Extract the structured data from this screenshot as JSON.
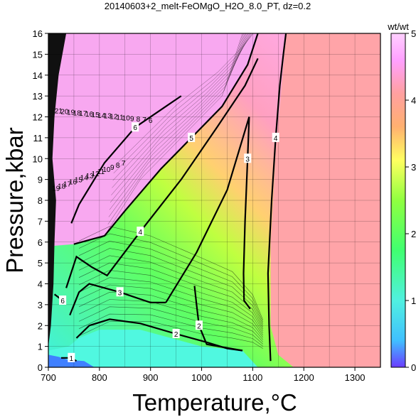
{
  "chart_data": {
    "type": "heatmap",
    "title": "20140603+2_melt-FeOMgO_H2O_8.0_PT, dz=0.2",
    "xlabel": "Temperature,°C",
    "ylabel": "Pressure,kbar",
    "xlim": [
      700,
      1350
    ],
    "ylim": [
      0,
      16
    ],
    "xticks": [
      "700",
      "800",
      "900",
      "1000",
      "1100",
      "1200",
      "1300"
    ],
    "yticks": [
      "0",
      "1",
      "2",
      "3",
      "4",
      "5",
      "6",
      "7",
      "8",
      "9",
      "10",
      "11",
      "12",
      "13",
      "14",
      "15",
      "16"
    ],
    "grid": true,
    "colorbar": {
      "label": "wt/wt",
      "range": [
        0,
        5
      ],
      "ticks": [
        "0",
        "1",
        "2",
        "3",
        "4",
        "5"
      ],
      "colors": [
        "#5050ff",
        "#40e0ff",
        "#40ff80",
        "#a0ff40",
        "#ffff60",
        "#ffb070",
        "#ffa0a0",
        "#ffa0ff",
        "#ffd0ff"
      ]
    },
    "contours": [
      {
        "level": "1",
        "points": [
          [
            725,
            0.45
          ],
          [
            745,
            0.45
          ],
          [
            755,
            0.3
          ]
        ]
      },
      {
        "level": "2",
        "points": [
          [
            755,
            1.4
          ],
          [
            780,
            2.0
          ],
          [
            820,
            2.3
          ],
          [
            880,
            2.1
          ],
          [
            950,
            1.6
          ],
          [
            1010,
            1.2
          ],
          [
            1050,
            0.9
          ],
          [
            1080,
            0.8
          ]
        ]
      },
      {
        "level": "2",
        "points": [
          [
            1080,
            0.8
          ],
          [
            1010,
            1.1
          ],
          [
            995,
            2.0
          ],
          [
            990,
            3.0
          ],
          [
            986,
            3.9
          ]
        ]
      },
      {
        "level": "3",
        "points": [
          [
            742,
            2.5
          ],
          [
            760,
            3.6
          ],
          [
            780,
            4.0
          ],
          [
            840,
            3.6
          ],
          [
            900,
            3.1
          ],
          [
            930,
            3.1
          ]
        ]
      },
      {
        "level": "3",
        "points": [
          [
            930,
            3.1
          ],
          [
            990,
            5.5
          ],
          [
            1050,
            8.5
          ],
          [
            1093,
            12.0
          ],
          [
            1090,
            10.0
          ],
          [
            1085,
            7.0
          ],
          [
            1082,
            4.5
          ],
          [
            1083,
            3.2
          ],
          [
            1095,
            2.8
          ]
        ]
      },
      {
        "level": "4",
        "points": [
          [
            735,
            3.8
          ],
          [
            755,
            5.3
          ],
          [
            785,
            4.8
          ],
          [
            815,
            4.4
          ],
          [
            880,
            6.5
          ],
          [
            960,
            9.0
          ],
          [
            1030,
            11.5
          ],
          [
            1085,
            13.5
          ],
          [
            1110,
            14.8
          ]
        ]
      },
      {
        "level": "4",
        "points": [
          [
            1135,
            0.3
          ],
          [
            1132,
            2.0
          ],
          [
            1130,
            4.5
          ],
          [
            1137,
            8.0
          ],
          [
            1145,
            11.0
          ],
          [
            1153,
            13.5
          ],
          [
            1160,
            15.0
          ],
          [
            1165,
            16.0
          ]
        ]
      },
      {
        "level": "5",
        "points": [
          [
            750,
            5.9
          ],
          [
            810,
            6.3
          ],
          [
            850,
            7.5
          ],
          [
            920,
            9.5
          ],
          [
            980,
            11.0
          ],
          [
            1040,
            12.5
          ],
          [
            1090,
            14.5
          ],
          [
            1110,
            16.0
          ]
        ]
      },
      {
        "level": "6",
        "points": [
          [
            745,
            6.9
          ],
          [
            760,
            7.8
          ],
          [
            810,
            9.8
          ],
          [
            870,
            11.5
          ],
          [
            930,
            12.5
          ],
          [
            960,
            13.0
          ]
        ]
      },
      {
        "level": "6",
        "points": [
          [
            712,
            3.5
          ],
          [
            728,
            3.2
          ]
        ]
      }
    ],
    "labels_cluster_top": [
      "21",
      "20",
      "19",
      "18",
      "17",
      "16",
      "15",
      "14",
      "13",
      "12",
      "11",
      "10",
      "9",
      "8",
      "7",
      "6"
    ],
    "labels_cluster_mid": [
      "19",
      "18",
      "17",
      "16",
      "15",
      "14",
      "13",
      "12",
      "11",
      "10",
      "9",
      "8",
      "7"
    ]
  }
}
